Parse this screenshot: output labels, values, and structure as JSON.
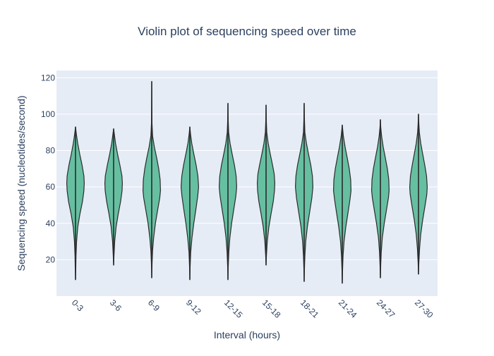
{
  "chart_data": {
    "type": "violin",
    "title": "Violin plot of sequencing speed over time",
    "xlabel": "Interval (hours)",
    "ylabel": "Sequencing speed (nucleotides/second)",
    "ylim": [
      0,
      124
    ],
    "yticks": [
      20,
      40,
      60,
      80,
      100,
      120
    ],
    "grid": true,
    "legend": "none",
    "categories": [
      "0-3",
      "3-6",
      "6-9",
      "9-12",
      "12-15",
      "15-18",
      "18-21",
      "21-24",
      "24-27",
      "27-30"
    ],
    "violins": [
      {
        "category": "0-3",
        "min": 9,
        "max": 93,
        "profile": [
          [
            9,
            0.0
          ],
          [
            15,
            0.03
          ],
          [
            22,
            0.06
          ],
          [
            30,
            0.12
          ],
          [
            38,
            0.26
          ],
          [
            45,
            0.5
          ],
          [
            52,
            0.8
          ],
          [
            58,
            0.96
          ],
          [
            62,
            1.0
          ],
          [
            66,
            0.96
          ],
          [
            72,
            0.75
          ],
          [
            78,
            0.48
          ],
          [
            84,
            0.25
          ],
          [
            89,
            0.1
          ],
          [
            93,
            0.0
          ]
        ]
      },
      {
        "category": "3-6",
        "min": 17,
        "max": 92,
        "profile": [
          [
            17,
            0.0
          ],
          [
            22,
            0.04
          ],
          [
            30,
            0.12
          ],
          [
            38,
            0.28
          ],
          [
            45,
            0.52
          ],
          [
            52,
            0.8
          ],
          [
            58,
            0.97
          ],
          [
            62,
            1.0
          ],
          [
            66,
            0.95
          ],
          [
            72,
            0.72
          ],
          [
            78,
            0.45
          ],
          [
            84,
            0.22
          ],
          [
            89,
            0.08
          ],
          [
            92,
            0.0
          ]
        ]
      },
      {
        "category": "6-9",
        "min": 10,
        "max": 118,
        "profile": [
          [
            10,
            0.0
          ],
          [
            18,
            0.04
          ],
          [
            25,
            0.1
          ],
          [
            32,
            0.22
          ],
          [
            40,
            0.42
          ],
          [
            48,
            0.7
          ],
          [
            54,
            0.92
          ],
          [
            58,
            1.0
          ],
          [
            64,
            0.96
          ],
          [
            70,
            0.8
          ],
          [
            76,
            0.56
          ],
          [
            82,
            0.3
          ],
          [
            88,
            0.1
          ],
          [
            95,
            0.03
          ],
          [
            105,
            0.02
          ],
          [
            118,
            0.0
          ]
        ]
      },
      {
        "category": "9-12",
        "min": 9,
        "max": 93,
        "profile": [
          [
            9,
            0.0
          ],
          [
            16,
            0.03
          ],
          [
            24,
            0.1
          ],
          [
            32,
            0.24
          ],
          [
            40,
            0.45
          ],
          [
            48,
            0.7
          ],
          [
            55,
            0.9
          ],
          [
            60,
            1.0
          ],
          [
            66,
            0.92
          ],
          [
            72,
            0.72
          ],
          [
            78,
            0.46
          ],
          [
            84,
            0.22
          ],
          [
            89,
            0.08
          ],
          [
            93,
            0.0
          ]
        ]
      },
      {
        "category": "12-15",
        "min": 9,
        "max": 106,
        "profile": [
          [
            9,
            0.0
          ],
          [
            16,
            0.03
          ],
          [
            24,
            0.1
          ],
          [
            32,
            0.22
          ],
          [
            40,
            0.42
          ],
          [
            48,
            0.68
          ],
          [
            55,
            0.9
          ],
          [
            60,
            1.0
          ],
          [
            66,
            0.93
          ],
          [
            72,
            0.74
          ],
          [
            78,
            0.48
          ],
          [
            84,
            0.24
          ],
          [
            90,
            0.08
          ],
          [
            96,
            0.03
          ],
          [
            106,
            0.0
          ]
        ]
      },
      {
        "category": "15-18",
        "min": 17,
        "max": 105,
        "profile": [
          [
            17,
            0.0
          ],
          [
            22,
            0.04
          ],
          [
            30,
            0.14
          ],
          [
            38,
            0.32
          ],
          [
            45,
            0.56
          ],
          [
            52,
            0.82
          ],
          [
            58,
            0.97
          ],
          [
            62,
            1.0
          ],
          [
            67,
            0.93
          ],
          [
            72,
            0.74
          ],
          [
            78,
            0.48
          ],
          [
            84,
            0.24
          ],
          [
            90,
            0.08
          ],
          [
            96,
            0.03
          ],
          [
            105,
            0.0
          ]
        ]
      },
      {
        "category": "18-21",
        "min": 8,
        "max": 106,
        "profile": [
          [
            8,
            0.0
          ],
          [
            15,
            0.03
          ],
          [
            22,
            0.08
          ],
          [
            30,
            0.18
          ],
          [
            38,
            0.36
          ],
          [
            46,
            0.62
          ],
          [
            54,
            0.88
          ],
          [
            60,
            1.0
          ],
          [
            66,
            0.94
          ],
          [
            72,
            0.76
          ],
          [
            78,
            0.5
          ],
          [
            84,
            0.26
          ],
          [
            90,
            0.08
          ],
          [
            97,
            0.03
          ],
          [
            106,
            0.0
          ]
        ]
      },
      {
        "category": "21-24",
        "min": 7,
        "max": 94,
        "profile": [
          [
            7,
            0.0
          ],
          [
            14,
            0.03
          ],
          [
            22,
            0.09
          ],
          [
            30,
            0.2
          ],
          [
            38,
            0.4
          ],
          [
            46,
            0.66
          ],
          [
            53,
            0.88
          ],
          [
            58,
            1.0
          ],
          [
            64,
            0.96
          ],
          [
            70,
            0.8
          ],
          [
            76,
            0.56
          ],
          [
            82,
            0.32
          ],
          [
            88,
            0.12
          ],
          [
            94,
            0.0
          ]
        ]
      },
      {
        "category": "24-27",
        "min": 10,
        "max": 97,
        "profile": [
          [
            10,
            0.0
          ],
          [
            17,
            0.04
          ],
          [
            24,
            0.1
          ],
          [
            32,
            0.22
          ],
          [
            40,
            0.44
          ],
          [
            48,
            0.72
          ],
          [
            54,
            0.92
          ],
          [
            58,
            1.0
          ],
          [
            64,
            0.96
          ],
          [
            70,
            0.8
          ],
          [
            76,
            0.56
          ],
          [
            82,
            0.32
          ],
          [
            88,
            0.14
          ],
          [
            93,
            0.04
          ],
          [
            97,
            0.0
          ]
        ]
      },
      {
        "category": "27-30",
        "min": 12,
        "max": 100,
        "profile": [
          [
            12,
            0.0
          ],
          [
            18,
            0.04
          ],
          [
            26,
            0.12
          ],
          [
            34,
            0.26
          ],
          [
            42,
            0.48
          ],
          [
            50,
            0.76
          ],
          [
            56,
            0.95
          ],
          [
            60,
            1.0
          ],
          [
            66,
            0.92
          ],
          [
            72,
            0.72
          ],
          [
            78,
            0.48
          ],
          [
            84,
            0.26
          ],
          [
            90,
            0.1
          ],
          [
            95,
            0.04
          ],
          [
            100,
            0.0
          ]
        ]
      }
    ],
    "colors": {
      "fill": "#66bfa1",
      "outline": "#2b2b2b",
      "plot_bg": "#e5ecf6",
      "grid": "#ffffff",
      "text": "#2a3f5f"
    }
  }
}
